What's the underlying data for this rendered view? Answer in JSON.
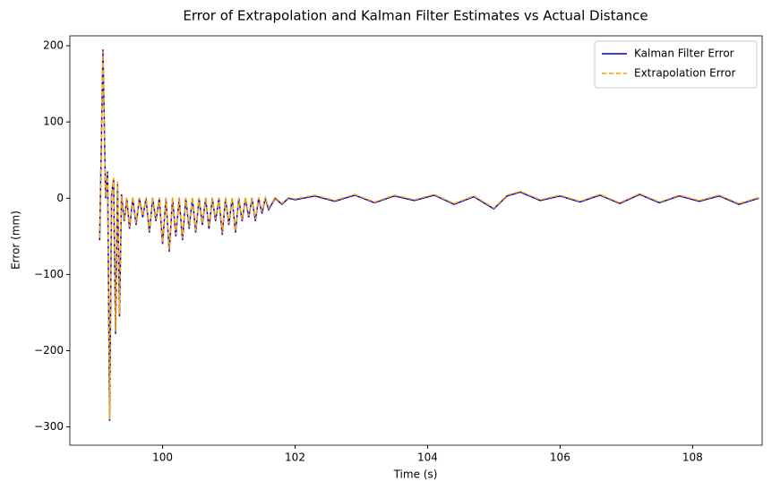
{
  "chart_data": {
    "type": "line",
    "title": "Error of Extrapolation and Kalman Filter Estimates vs Actual Distance",
    "x_label": "Time (s)",
    "y_label": "Error (mm)",
    "x": [
      99.05,
      99.1,
      99.14,
      99.17,
      99.2,
      99.23,
      99.26,
      99.29,
      99.32,
      99.35,
      99.38,
      99.42,
      99.46,
      99.5,
      99.55,
      99.6,
      99.65,
      99.7,
      99.75,
      99.8,
      99.85,
      99.9,
      99.95,
      100.0,
      100.05,
      100.1,
      100.15,
      100.2,
      100.25,
      100.3,
      100.35,
      100.4,
      100.45,
      100.5,
      100.55,
      100.6,
      100.65,
      100.7,
      100.75,
      100.8,
      100.85,
      100.9,
      100.95,
      101.0,
      101.05,
      101.1,
      101.15,
      101.2,
      101.25,
      101.3,
      101.35,
      101.4,
      101.45,
      101.5,
      101.55,
      101.6,
      101.7,
      101.8,
      101.9,
      102.0,
      102.3,
      102.6,
      102.9,
      103.2,
      103.5,
      103.8,
      104.1,
      104.4,
      104.7,
      105.0,
      105.2,
      105.4,
      105.7,
      106.0,
      106.3,
      106.6,
      106.9,
      107.2,
      107.5,
      107.8,
      108.1,
      108.4,
      108.7,
      109.0
    ],
    "series": [
      {
        "name": "Kalman Filter Error",
        "color": "#0000cd",
        "dashed": false,
        "values": [
          -55,
          195,
          0,
          35,
          -292,
          5,
          25,
          -178,
          20,
          -155,
          5,
          -30,
          0,
          -40,
          0,
          -35,
          0,
          -25,
          0,
          -45,
          0,
          -30,
          0,
          -60,
          0,
          -70,
          0,
          -50,
          0,
          -55,
          0,
          -40,
          0,
          -45,
          0,
          -35,
          0,
          -40,
          0,
          -30,
          0,
          -48,
          0,
          -35,
          0,
          -45,
          0,
          -30,
          0,
          -25,
          0,
          -30,
          0,
          -20,
          0,
          -15,
          0,
          -8,
          0,
          -2,
          3,
          -4,
          4,
          -6,
          3,
          -3,
          4,
          -8,
          2,
          -14,
          3,
          8,
          -3,
          3,
          -5,
          4,
          -7,
          5,
          -6,
          3,
          -4,
          3,
          -8,
          0
        ]
      },
      {
        "name": "Extrapolation Error",
        "color": "#ffa500",
        "dashed": true,
        "values": [
          -52,
          193,
          2,
          33,
          -290,
          4,
          27,
          -175,
          22,
          -152,
          3,
          -28,
          1,
          -38,
          2,
          -33,
          1,
          -23,
          1,
          -43,
          1,
          -28,
          1,
          -58,
          1,
          -68,
          1,
          -48,
          1,
          -53,
          1,
          -38,
          1,
          -43,
          1,
          -33,
          1,
          -38,
          1,
          -28,
          1,
          -46,
          1,
          -33,
          1,
          -43,
          1,
          -28,
          1,
          -23,
          1,
          -28,
          1,
          -18,
          1,
          -13,
          1,
          -7,
          1,
          -1,
          4,
          -3,
          5,
          -5,
          4,
          -2,
          5,
          -7,
          3,
          -13,
          4,
          9,
          -2,
          4,
          -4,
          5,
          -6,
          6,
          -5,
          4,
          -3,
          4,
          -7,
          1
        ]
      }
    ],
    "xlim": [
      98.6,
      109.05
    ],
    "ylim": [
      -324,
      213
    ],
    "xticks": [
      100,
      102,
      104,
      106,
      108
    ],
    "yticks": [
      {
        "value": -300,
        "label": "−300"
      },
      {
        "value": -200,
        "label": "−200"
      },
      {
        "value": -100,
        "label": "−100"
      },
      0,
      100,
      200
    ],
    "legend": "upper right"
  }
}
